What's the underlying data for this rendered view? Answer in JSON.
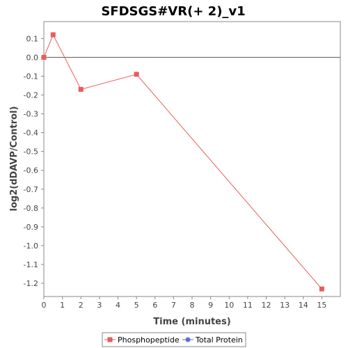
{
  "chart_data": {
    "type": "line",
    "title": "SFDSGS#VR(+ 2)_v1",
    "xlabel": "Time (minutes)",
    "ylabel": "log2(dDAVP/Control)",
    "xlim": [
      0,
      16
    ],
    "ylim": [
      -1.27,
      0.19
    ],
    "x_ticks": [
      0,
      1,
      2,
      3,
      4,
      5,
      6,
      7,
      8,
      9,
      10,
      11,
      12,
      13,
      14,
      15
    ],
    "y_ticks": [
      0.1,
      0.0,
      -0.1,
      -0.2,
      -0.3,
      -0.4,
      -0.5,
      -0.6,
      -0.7,
      -0.8,
      -0.9,
      -1.0,
      -1.1,
      -1.2
    ],
    "y_tick_labels": [
      "0.1",
      "0.0",
      "-0.1",
      "-0.2",
      "-0.3",
      "-0.4",
      "-0.5",
      "-0.6",
      "-0.7",
      "-0.8",
      "-0.9",
      "-1.0",
      "-1.1",
      "-1.2"
    ],
    "zero_line": true,
    "grid": false,
    "legend_position": "bottom",
    "series": [
      {
        "name": "Phosphopeptide",
        "color": "#e85c5c",
        "marker": "square",
        "x": [
          0,
          0.5,
          2,
          5,
          15
        ],
        "y": [
          0.0,
          0.12,
          -0.17,
          -0.09,
          -1.23
        ]
      },
      {
        "name": "Total Protein",
        "color": "#5a6ee8",
        "marker": "circle",
        "x": [],
        "y": []
      }
    ]
  }
}
